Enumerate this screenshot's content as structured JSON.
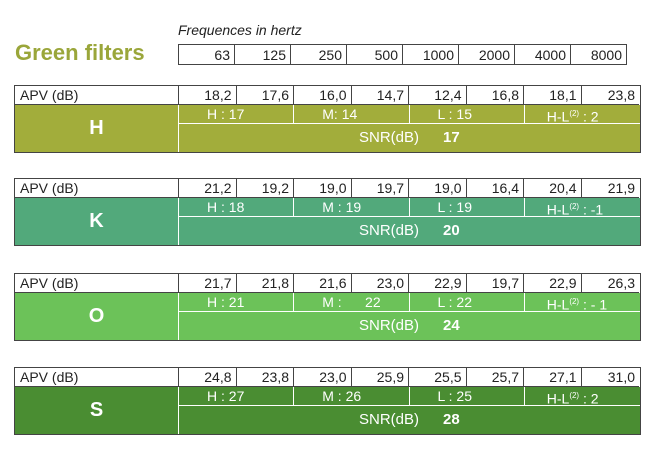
{
  "title": "Green filters",
  "frequency_label": "Frequences in hertz",
  "frequencies": [
    "63",
    "125",
    "250",
    "500",
    "1000",
    "2000",
    "4000",
    "8000"
  ],
  "apv_label": "APV (dB)",
  "snr_label": "SNR(dB)",
  "filters": [
    {
      "letter": "H",
      "color": "#a2ad3b",
      "apv": [
        "18,2",
        "17,6",
        "16,0",
        "14,7",
        "12,4",
        "16,8",
        "18,1",
        "23,8"
      ],
      "h": "H : 17",
      "m": "M: 14",
      "l": "L : 15",
      "hl_prefix": "H-L",
      "hl_sup": "(2)",
      "hl_value": ": 2",
      "snr": "17"
    },
    {
      "letter": "K",
      "color": "#52a97b",
      "apv": [
        "21,2",
        "19,2",
        "19,0",
        "19,7",
        "19,0",
        "16,4",
        "20,4",
        "21,9"
      ],
      "h": "H : 18",
      "m": "M : 19",
      "l": "L : 19",
      "hl_prefix": "H-L",
      "hl_sup": "(2)",
      "hl_value": ": -1",
      "snr": "20"
    },
    {
      "letter": "O",
      "color": "#6cc259",
      "apv": [
        "21,7",
        "21,8",
        "21,6",
        "23,0",
        "22,9",
        "19,7",
        "22,9",
        "26,3"
      ],
      "h": "H : 21",
      "m": "M :      22",
      "l": "L : 22",
      "hl_prefix": "H-L",
      "hl_sup": "(2)",
      "hl_value": ": - 1",
      "snr": "24"
    },
    {
      "letter": "S",
      "color": "#4a8d32",
      "apv": [
        "24,8",
        "23,8",
        "23,0",
        "25,9",
        "25,5",
        "25,7",
        "27,1",
        "31,0"
      ],
      "h": "H : 27",
      "m": "M : 26",
      "l": "L : 25",
      "hl_prefix": "H-L",
      "hl_sup": "(2)",
      "hl_value": ": 2",
      "snr": "28"
    }
  ]
}
